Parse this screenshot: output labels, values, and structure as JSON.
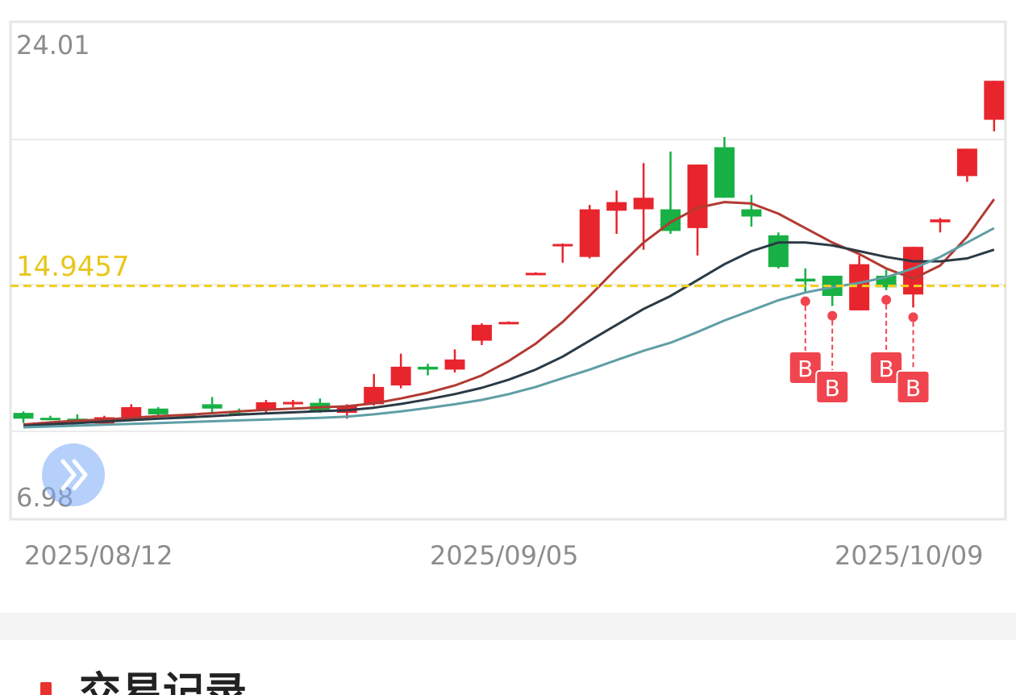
{
  "chart_data": {
    "type": "candlestick",
    "y_axis": {
      "max_label": "24.01",
      "min_label": "6.98",
      "range": [
        6.98,
        24.01
      ]
    },
    "x_labels": [
      "2025/08/12",
      "2025/09/05",
      "2025/10/09"
    ],
    "reference_line": {
      "value": 14.9457,
      "label": "14.9457",
      "color": "#f2cf1d",
      "style": "dashed"
    },
    "up_color": "#e8252d",
    "down_color": "#17b145",
    "candles": [
      {
        "open": 10.55,
        "close": 10.35,
        "high": 10.6,
        "low": 10.2
      },
      {
        "open": 10.38,
        "close": 10.33,
        "high": 10.45,
        "low": 10.3
      },
      {
        "open": 10.35,
        "close": 10.25,
        "high": 10.5,
        "low": 10.15
      },
      {
        "open": 10.18,
        "close": 10.4,
        "high": 10.45,
        "low": 10.15
      },
      {
        "open": 10.32,
        "close": 10.75,
        "high": 10.85,
        "low": 10.3
      },
      {
        "open": 10.7,
        "close": 10.5,
        "high": 10.75,
        "low": 10.45
      },
      {
        "open": 10.5,
        "close": 10.45,
        "high": 10.52,
        "low": 10.4
      },
      {
        "open": 10.85,
        "close": 10.7,
        "high": 11.1,
        "low": 10.55
      },
      {
        "open": 10.55,
        "close": 10.52,
        "high": 10.7,
        "low": 10.45
      },
      {
        "open": 10.65,
        "close": 10.92,
        "high": 11.0,
        "low": 10.55
      },
      {
        "open": 10.85,
        "close": 10.93,
        "high": 11.0,
        "low": 10.75
      },
      {
        "open": 10.9,
        "close": 10.6,
        "high": 11.05,
        "low": 10.55
      },
      {
        "open": 10.55,
        "close": 10.8,
        "high": 10.85,
        "low": 10.35
      },
      {
        "open": 10.85,
        "close": 11.45,
        "high": 11.9,
        "low": 10.8
      },
      {
        "open": 11.5,
        "close": 12.15,
        "high": 12.6,
        "low": 11.4
      },
      {
        "open": 12.15,
        "close": 12.05,
        "high": 12.25,
        "low": 11.85
      },
      {
        "open": 12.05,
        "close": 12.4,
        "high": 12.75,
        "low": 11.95
      },
      {
        "open": 13.05,
        "close": 13.6,
        "high": 13.65,
        "low": 12.9
      },
      {
        "open": 13.65,
        "close": 13.7,
        "high": 13.72,
        "low": 13.65
      },
      {
        "open": 15.35,
        "close": 15.4,
        "high": 15.42,
        "low": 15.35
      },
      {
        "open": 16.35,
        "close": 16.4,
        "high": 16.42,
        "low": 15.75
      },
      {
        "open": 15.95,
        "close": 17.6,
        "high": 17.75,
        "low": 15.9
      },
      {
        "open": 17.55,
        "close": 17.85,
        "high": 18.25,
        "low": 16.75
      },
      {
        "open": 17.6,
        "close": 18.0,
        "high": 19.2,
        "low": 16.2
      },
      {
        "open": 17.6,
        "close": 16.85,
        "high": 19.6,
        "low": 16.75
      },
      {
        "open": 16.95,
        "close": 19.15,
        "high": 19.15,
        "low": 16.0
      },
      {
        "open": 19.75,
        "close": 18.0,
        "high": 20.1,
        "low": 18.0
      },
      {
        "open": 17.6,
        "close": 17.35,
        "high": 18.1,
        "low": 17.0
      },
      {
        "open": 16.7,
        "close": 15.6,
        "high": 16.8,
        "low": 15.55
      },
      {
        "open": 15.2,
        "close": 15.1,
        "high": 15.55,
        "low": 14.75
      },
      {
        "open": 15.3,
        "close": 14.6,
        "high": 15.3,
        "low": 14.25
      },
      {
        "open": 14.1,
        "close": 15.7,
        "high": 16.0,
        "low": 14.1
      },
      {
        "open": 15.3,
        "close": 14.9,
        "high": 15.5,
        "low": 14.8
      },
      {
        "open": 14.65,
        "close": 16.3,
        "high": 16.3,
        "low": 14.2
      },
      {
        "open": 17.15,
        "close": 17.25,
        "high": 17.3,
        "low": 16.8
      },
      {
        "open": 18.75,
        "close": 19.7,
        "high": 19.7,
        "low": 18.55
      },
      {
        "open": 20.7,
        "close": 22.05,
        "high": 22.05,
        "low": 20.3
      }
    ],
    "moving_averages": [
      {
        "color": "#b23a33",
        "values": [
          10.15,
          10.22,
          10.28,
          10.32,
          10.38,
          10.44,
          10.48,
          10.54,
          10.6,
          10.66,
          10.7,
          10.74,
          10.78,
          10.88,
          11.05,
          11.25,
          11.5,
          11.85,
          12.35,
          12.95,
          13.7,
          14.6,
          15.55,
          16.45,
          17.15,
          17.65,
          17.85,
          17.8,
          17.45,
          16.95,
          16.45,
          16.05,
          15.55,
          15.2,
          15.65,
          16.65,
          17.95
        ]
      },
      {
        "color": "#2b3a44",
        "values": [
          10.1,
          10.16,
          10.2,
          10.25,
          10.3,
          10.35,
          10.39,
          10.44,
          10.49,
          10.53,
          10.57,
          10.61,
          10.64,
          10.73,
          10.86,
          11.02,
          11.2,
          11.42,
          11.7,
          12.05,
          12.5,
          13.05,
          13.6,
          14.15,
          14.6,
          15.15,
          15.7,
          16.15,
          16.45,
          16.45,
          16.35,
          16.15,
          15.95,
          15.8,
          15.8,
          15.9,
          16.2
        ]
      },
      {
        "color": "#5f9ea5",
        "values": [
          10.05,
          10.08,
          10.11,
          10.14,
          10.17,
          10.2,
          10.23,
          10.26,
          10.29,
          10.32,
          10.35,
          10.38,
          10.42,
          10.5,
          10.6,
          10.72,
          10.85,
          11.0,
          11.2,
          11.45,
          11.75,
          12.05,
          12.38,
          12.7,
          12.98,
          13.35,
          13.75,
          14.1,
          14.45,
          14.72,
          14.9,
          15.05,
          15.25,
          15.55,
          15.95,
          16.45,
          16.95
        ]
      }
    ],
    "buy_markers": [
      {
        "candle_index": 29,
        "label": "B"
      },
      {
        "candle_index": 30,
        "label": "B"
      },
      {
        "candle_index": 32,
        "label": "B"
      },
      {
        "candle_index": 33,
        "label": "B"
      }
    ]
  },
  "section": {
    "title": "交易记录"
  },
  "icons": {
    "expand": "double-chevron-right-icon"
  }
}
